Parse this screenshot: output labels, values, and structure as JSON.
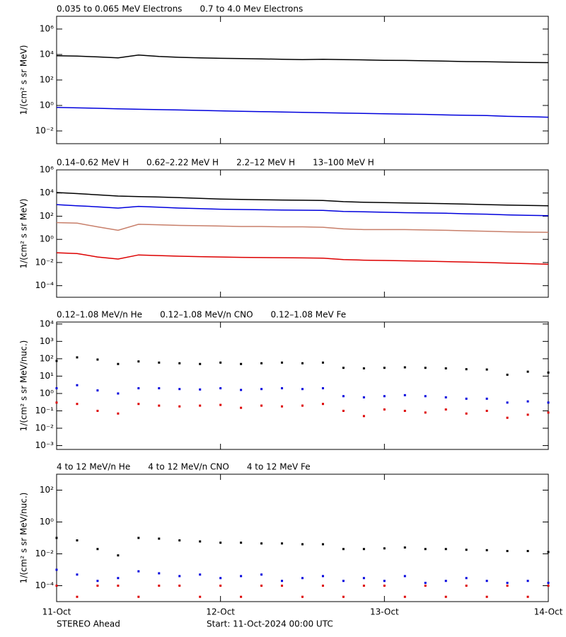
{
  "chart_data": [
    {
      "type": "line",
      "ylabel": "1/(cm² s sr MeV)",
      "log_y": true,
      "x": [
        0,
        3,
        6,
        9,
        12,
        15,
        18,
        21,
        24,
        27,
        30,
        33,
        36,
        39,
        42,
        45,
        48,
        51,
        54,
        57,
        60,
        63,
        66,
        69,
        72
      ],
      "xlim": [
        0,
        72
      ],
      "ylim": [
        0.001,
        10000000
      ],
      "yticks": [
        {
          "value": 0.01,
          "label": "10⁻²"
        },
        {
          "value": 1,
          "label": "10⁰"
        },
        {
          "value": 100,
          "label": "10²"
        },
        {
          "value": 10000,
          "label": "10⁴"
        },
        {
          "value": 1000000,
          "label": "10⁶"
        }
      ],
      "series": [
        {
          "name": "0.035 to 0.065 MeV Electrons",
          "color": "#000000",
          "values": [
            8000,
            7500,
            6500,
            5500,
            9000,
            7000,
            6000,
            5500,
            5000,
            4800,
            4500,
            4200,
            4000,
            4200,
            4000,
            3800,
            3500,
            3400,
            3200,
            3000,
            2800,
            2700,
            2500,
            2400,
            2300
          ]
        },
        {
          "name": "0.7 to 4.0 Mev Electrons",
          "color": "#0000dd",
          "values": [
            0.7,
            0.65,
            0.6,
            0.55,
            0.5,
            0.47,
            0.44,
            0.41,
            0.38,
            0.35,
            0.33,
            0.31,
            0.29,
            0.27,
            0.25,
            0.24,
            0.22,
            0.21,
            0.2,
            0.18,
            0.17,
            0.16,
            0.14,
            0.13,
            0.12
          ]
        }
      ]
    },
    {
      "type": "line",
      "ylabel": "1/(cm² s sr MeV)",
      "log_y": true,
      "x": [
        0,
        3,
        6,
        9,
        12,
        15,
        18,
        21,
        24,
        27,
        30,
        33,
        36,
        39,
        42,
        45,
        48,
        51,
        54,
        57,
        60,
        63,
        66,
        69,
        72
      ],
      "xlim": [
        0,
        72
      ],
      "ylim": [
        1e-05,
        1000000
      ],
      "yticks": [
        {
          "value": 0.0001,
          "label": "10⁻⁴"
        },
        {
          "value": 0.01,
          "label": "10⁻²"
        },
        {
          "value": 1,
          "label": "10⁰"
        },
        {
          "value": 100,
          "label": "10²"
        },
        {
          "value": 10000,
          "label": "10⁴"
        },
        {
          "value": 1000000,
          "label": "10⁶"
        }
      ],
      "series": [
        {
          "name": "0.14–0.62 MeV H",
          "color": "#000000",
          "values": [
            11000,
            9000,
            7000,
            5500,
            5000,
            4500,
            4000,
            3500,
            3000,
            2800,
            2600,
            2500,
            2400,
            2300,
            1800,
            1600,
            1500,
            1400,
            1300,
            1200,
            1100,
            1000,
            900,
            850,
            800
          ]
        },
        {
          "name": "0.62–2.22 MeV H",
          "color": "#0000dd",
          "values": [
            1000,
            800,
            650,
            500,
            700,
            600,
            500,
            450,
            400,
            380,
            360,
            340,
            330,
            320,
            260,
            240,
            220,
            200,
            190,
            180,
            160,
            150,
            130,
            120,
            110
          ]
        },
        {
          "name": "2.2–12 MeV H",
          "color": "#c87f6a",
          "values": [
            28,
            25,
            12,
            6,
            20,
            18,
            16,
            15,
            14,
            13,
            13,
            12,
            12,
            11,
            8,
            7,
            7,
            7,
            6.5,
            6,
            5.5,
            5,
            4.5,
            4.2,
            4
          ]
        },
        {
          "name": "13–100 MeV H",
          "color": "#dd0000",
          "values": [
            0.07,
            0.06,
            0.03,
            0.02,
            0.045,
            0.04,
            0.035,
            0.032,
            0.03,
            0.028,
            0.027,
            0.026,
            0.025,
            0.024,
            0.018,
            0.016,
            0.015,
            0.014,
            0.013,
            0.012,
            0.011,
            0.01,
            0.009,
            0.008,
            0.007
          ]
        }
      ]
    },
    {
      "type": "scatter",
      "ylabel": "1/(cm² s sr MeV/nuc.)",
      "log_y": true,
      "x": [
        0,
        3,
        6,
        9,
        12,
        15,
        18,
        21,
        24,
        27,
        30,
        33,
        36,
        39,
        42,
        45,
        48,
        51,
        54,
        57,
        60,
        63,
        66,
        69,
        72
      ],
      "xlim": [
        0,
        72
      ],
      "ylim": [
        0.0006,
        13000
      ],
      "yticks": [
        {
          "value": 0.001,
          "label": "10⁻³"
        },
        {
          "value": 0.01,
          "label": "10⁻²"
        },
        {
          "value": 0.1,
          "label": "10⁻¹"
        },
        {
          "value": 1,
          "label": "10⁰"
        },
        {
          "value": 10,
          "label": "10¹"
        },
        {
          "value": 100,
          "label": "10²"
        },
        {
          "value": 1000,
          "label": "10³"
        },
        {
          "value": 10000,
          "label": "10⁴"
        }
      ],
      "series": [
        {
          "name": "0.12–1.08 MeV/n He",
          "color": "#000000",
          "values": [
            75,
            120,
            90,
            50,
            70,
            60,
            55,
            50,
            60,
            50,
            55,
            60,
            55,
            60,
            30,
            28,
            30,
            32,
            30,
            28,
            25,
            24,
            12,
            18,
            16
          ]
        },
        {
          "name": "0.12–1.08 MeV/n CNO",
          "color": "#0000dd",
          "values": [
            2,
            3,
            1.5,
            1,
            2,
            2,
            1.8,
            1.7,
            2,
            1.6,
            1.8,
            2,
            1.8,
            2,
            0.7,
            0.6,
            0.7,
            0.8,
            0.7,
            0.6,
            0.5,
            0.5,
            0.3,
            0.35,
            0.3
          ]
        },
        {
          "name": "0.12–1.08 MeV Fe",
          "color": "#dd0000",
          "values": [
            0.3,
            0.25,
            0.1,
            0.07,
            0.25,
            0.2,
            0.18,
            0.2,
            0.22,
            0.15,
            0.2,
            0.18,
            0.2,
            0.25,
            0.1,
            0.05,
            0.12,
            0.1,
            0.08,
            0.12,
            0.07,
            0.1,
            0.04,
            0.06,
            0.08
          ]
        }
      ]
    },
    {
      "type": "scatter",
      "ylabel": "1/(cm² s sr MeV/nuc.)",
      "log_y": true,
      "x": [
        0,
        3,
        6,
        9,
        12,
        15,
        18,
        21,
        24,
        27,
        30,
        33,
        36,
        39,
        42,
        45,
        48,
        51,
        54,
        57,
        60,
        63,
        66,
        69,
        72
      ],
      "xlim": [
        0,
        72
      ],
      "ylim": [
        1e-05,
        1000
      ],
      "xticks": [
        {
          "value": 0,
          "label": "11-Oct"
        },
        {
          "value": 24,
          "label": "12-Oct"
        },
        {
          "value": 48,
          "label": "13-Oct"
        },
        {
          "value": 72,
          "label": "14-Oct"
        }
      ],
      "yticks": [
        {
          "value": 0.0001,
          "label": "10⁻⁴"
        },
        {
          "value": 0.01,
          "label": "10⁻²"
        },
        {
          "value": 1,
          "label": "10⁰"
        },
        {
          "value": 100,
          "label": "10²"
        }
      ],
      "series": [
        {
          "name": "4 to 12 MeV/n He",
          "color": "#000000",
          "values": [
            0.1,
            0.07,
            0.02,
            0.008,
            0.1,
            0.09,
            0.07,
            0.06,
            0.05,
            0.05,
            0.045,
            0.045,
            0.04,
            0.04,
            0.02,
            0.02,
            0.022,
            0.025,
            0.02,
            0.02,
            0.018,
            0.017,
            0.015,
            0.015,
            0.013
          ]
        },
        {
          "name": "4 to 12 MeV/n CNO",
          "color": "#0000dd",
          "values": [
            0.001,
            0.0005,
            0.0002,
            0.0003,
            0.0008,
            0.0006,
            0.0004,
            0.0005,
            0.0003,
            0.0004,
            0.0005,
            0.0002,
            0.0003,
            0.0004,
            0.0002,
            0.0003,
            0.0002,
            0.0004,
            0.00015,
            0.0002,
            0.0003,
            0.0002,
            0.00015,
            0.0002,
            0.00015
          ]
        },
        {
          "name": "4 to 12 MeV Fe",
          "color": "#dd0000",
          "values": [
            0.0001,
            2e-05,
            0.0001,
            0.0001,
            2e-05,
            0.0001,
            0.0001,
            2e-05,
            0.0001,
            2e-05,
            0.0001,
            0.0001,
            2e-05,
            0.0001,
            2e-05,
            0.0001,
            0.0001,
            2e-05,
            0.0001,
            2e-05,
            0.0001,
            2e-05,
            0.0001,
            2e-05,
            0.0001
          ]
        }
      ]
    }
  ],
  "footer": {
    "left": "STEREO Ahead",
    "center": "Start: 11-Oct-2024 00:00 UTC"
  }
}
